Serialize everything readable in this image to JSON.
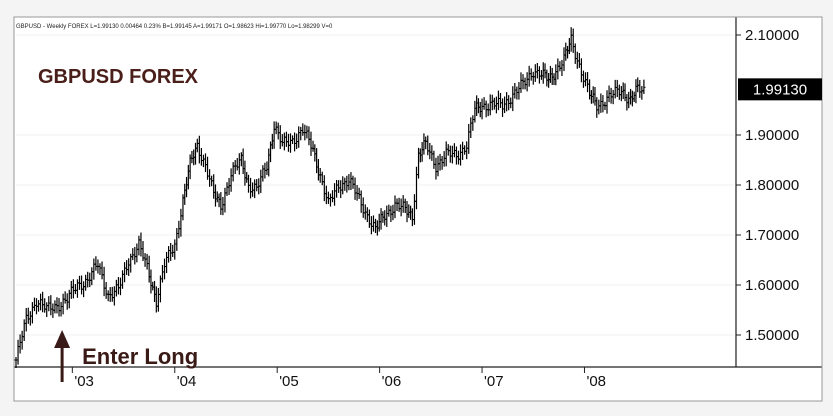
{
  "chart_data": {
    "type": "ohlc-bar",
    "info_line": "GBPUSD - Weekly FOREX  L=1.99130  0.00464  0.23%  B=1.99145  A=1.99171  O=1.98623  Hi=1.99770  Lo=1.98299  V=0",
    "title": "GBPUSD FOREX",
    "annotation": "Enter Long",
    "last_value": 1.9913,
    "last_label": "1.99130",
    "ylim": [
      1.44,
      2.13
    ],
    "y_ticks": [
      {
        "value": 2.1,
        "label": "2.10000"
      },
      {
        "value": 1.9,
        "label": "1.90000"
      },
      {
        "value": 1.8,
        "label": "1.80000"
      },
      {
        "value": 1.7,
        "label": "1.70000"
      },
      {
        "value": 1.6,
        "label": "1.60000"
      },
      {
        "value": 1.5,
        "label": "1.50000"
      }
    ],
    "xlim": [
      2002.45,
      2009.45
    ],
    "x_ticks": [
      {
        "value": 2003,
        "label": "'03"
      },
      {
        "value": 2004,
        "label": "'04"
      },
      {
        "value": 2005,
        "label": "'05"
      },
      {
        "value": 2006,
        "label": "'06"
      },
      {
        "value": 2007,
        "label": "'07"
      },
      {
        "value": 2008,
        "label": "'08"
      }
    ],
    "entry": {
      "x": 2002.9,
      "y": 1.53
    },
    "series": [
      {
        "values": [
          [
            2002.45,
            1.45
          ],
          [
            2002.55,
            1.53
          ],
          [
            2002.65,
            1.57
          ],
          [
            2002.75,
            1.55
          ],
          [
            2002.85,
            1.56
          ],
          [
            2002.95,
            1.57
          ],
          [
            2003.05,
            1.6
          ],
          [
            2003.15,
            1.61
          ],
          [
            2003.25,
            1.64
          ],
          [
            2003.35,
            1.58
          ],
          [
            2003.45,
            1.59
          ],
          [
            2003.55,
            1.65
          ],
          [
            2003.65,
            1.68
          ],
          [
            2003.75,
            1.62
          ],
          [
            2003.82,
            1.57
          ],
          [
            2003.9,
            1.64
          ],
          [
            2004.0,
            1.68
          ],
          [
            2004.08,
            1.77
          ],
          [
            2004.15,
            1.84
          ],
          [
            2004.22,
            1.88
          ],
          [
            2004.3,
            1.84
          ],
          [
            2004.38,
            1.78
          ],
          [
            2004.45,
            1.76
          ],
          [
            2004.55,
            1.82
          ],
          [
            2004.65,
            1.85
          ],
          [
            2004.72,
            1.8
          ],
          [
            2004.8,
            1.79
          ],
          [
            2004.9,
            1.84
          ],
          [
            2004.97,
            1.92
          ],
          [
            2005.05,
            1.88
          ],
          [
            2005.15,
            1.89
          ],
          [
            2005.25,
            1.91
          ],
          [
            2005.35,
            1.87
          ],
          [
            2005.42,
            1.82
          ],
          [
            2005.5,
            1.76
          ],
          [
            2005.6,
            1.8
          ],
          [
            2005.7,
            1.81
          ],
          [
            2005.8,
            1.77
          ],
          [
            2005.88,
            1.74
          ],
          [
            2005.96,
            1.71
          ],
          [
            2006.05,
            1.74
          ],
          [
            2006.15,
            1.76
          ],
          [
            2006.25,
            1.75
          ],
          [
            2006.32,
            1.74
          ],
          [
            2006.38,
            1.86
          ],
          [
            2006.45,
            1.88
          ],
          [
            2006.55,
            1.84
          ],
          [
            2006.65,
            1.86
          ],
          [
            2006.75,
            1.86
          ],
          [
            2006.85,
            1.88
          ],
          [
            2006.93,
            1.95
          ],
          [
            2007.0,
            1.96
          ],
          [
            2007.1,
            1.96
          ],
          [
            2007.2,
            1.96
          ],
          [
            2007.3,
            1.98
          ],
          [
            2007.4,
            2.0
          ],
          [
            2007.5,
            2.03
          ],
          [
            2007.58,
            2.02
          ],
          [
            2007.65,
            2.01
          ],
          [
            2007.72,
            2.03
          ],
          [
            2007.8,
            2.05
          ],
          [
            2007.87,
            2.09
          ],
          [
            2007.95,
            2.04
          ],
          [
            2008.05,
            1.98
          ],
          [
            2008.12,
            1.96
          ],
          [
            2008.2,
            1.97
          ],
          [
            2008.28,
            1.98
          ],
          [
            2008.36,
            1.99
          ],
          [
            2008.45,
            1.97
          ],
          [
            2008.52,
            1.99
          ],
          [
            2008.58,
            1.99
          ]
        ]
      }
    ]
  }
}
